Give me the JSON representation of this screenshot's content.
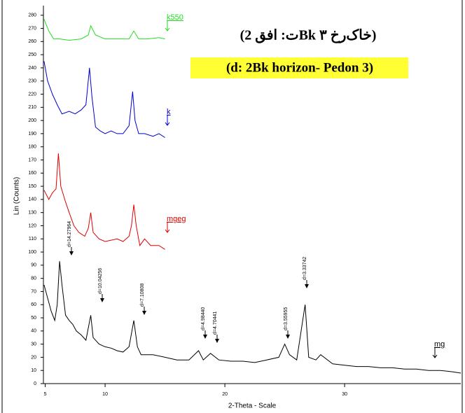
{
  "chart_data": {
    "type": "line",
    "title": "(ت: افق 2Bk خاک‌رخ ۳)",
    "subtitle": "(d: 2Bk horizon- Pedon 3)",
    "x_label": "2-Theta - Scale",
    "y_label": "Lin (Counts)",
    "xlim": [
      4.85,
      39.7
    ],
    "ylim": [
      0,
      282
    ],
    "xticks": [
      5,
      10,
      20,
      30
    ],
    "yticks": [
      0,
      10,
      20,
      30,
      40,
      50,
      60,
      70,
      80,
      90,
      100,
      110,
      120,
      130,
      140,
      150,
      160,
      170,
      180,
      190,
      200,
      210,
      220,
      230,
      240,
      250,
      260,
      270,
      280
    ],
    "series": [
      {
        "name": "mg",
        "color": "#000000",
        "x": [
          4.9,
          5.2,
          5.5,
          5.8,
          6.0,
          6.2,
          6.4,
          6.7,
          7.0,
          7.3,
          7.6,
          8.0,
          8.4,
          8.8,
          9.0,
          9.5,
          10,
          10.5,
          11,
          11.5,
          12.0,
          12.4,
          12.7,
          13,
          14,
          15,
          16,
          17,
          17.8,
          18.2,
          18.8,
          19.5,
          20.5,
          21.5,
          22.5,
          23.5,
          24.5,
          25.0,
          25.4,
          26,
          26.7,
          27,
          27.6,
          28,
          29,
          30,
          31,
          32,
          33,
          34,
          35,
          36,
          37,
          38,
          39,
          39.7
        ],
        "values": [
          75,
          65,
          55,
          48,
          60,
          93,
          75,
          52,
          48,
          45,
          40,
          37,
          33,
          52,
          35,
          30,
          28,
          27,
          25,
          24,
          28,
          48,
          28,
          22,
          22,
          20,
          18,
          18,
          25,
          18,
          23,
          18,
          17,
          17,
          16,
          18,
          20,
          30,
          22,
          18,
          60,
          20,
          18,
          22,
          15,
          14,
          13,
          13,
          12,
          12,
          11,
          11,
          10,
          10,
          9,
          8
        ]
      },
      {
        "name": "mgeg",
        "color": "#e00000",
        "x": [
          4.9,
          5.3,
          5.6,
          5.9,
          6.1,
          6.3,
          6.7,
          7.0,
          7.4,
          7.8,
          8.3,
          8.6,
          8.8,
          9.0,
          9.5,
          10,
          10.5,
          11,
          11.5,
          12,
          12.2,
          12.4,
          12.6,
          12.9,
          13.3,
          13.8,
          14.5,
          15
        ],
        "values": [
          147,
          140,
          145,
          148,
          175,
          150,
          138,
          130,
          120,
          115,
          112,
          118,
          130,
          115,
          110,
          108,
          109,
          110,
          108,
          112,
          120,
          136,
          120,
          105,
          110,
          105,
          105,
          102
        ]
      },
      {
        "name": "k",
        "color": "#0000d0",
        "x": [
          4.9,
          5.2,
          5.6,
          6.0,
          6.4,
          7.0,
          7.5,
          8.0,
          8.4,
          8.7,
          8.9,
          9.2,
          9.6,
          10,
          10.5,
          11,
          11.5,
          12,
          12.3,
          12.5,
          12.8,
          13.3,
          14,
          14.5,
          15
        ],
        "values": [
          245,
          230,
          220,
          212,
          205,
          207,
          205,
          208,
          212,
          240,
          218,
          195,
          192,
          190,
          192,
          190,
          190,
          196,
          222,
          200,
          190,
          190,
          188,
          190,
          187
        ]
      },
      {
        "name": "k550",
        "color": "#22dd22",
        "x": [
          4.9,
          5.3,
          5.7,
          6.2,
          7,
          8,
          8.6,
          8.8,
          9.2,
          10,
          11,
          12,
          12.4,
          12.8,
          13.5,
          14.5,
          15
        ],
        "values": [
          277,
          268,
          262,
          262,
          261,
          262,
          265,
          272,
          265,
          262,
          262,
          262,
          268,
          262,
          262,
          263,
          262
        ]
      }
    ],
    "annotations": [
      "d=14.27964",
      "d=10.04256",
      "d=7.10808",
      "d=4.98440",
      "d=4.70441",
      "d=3.55955",
      "d=3.33742"
    ]
  }
}
